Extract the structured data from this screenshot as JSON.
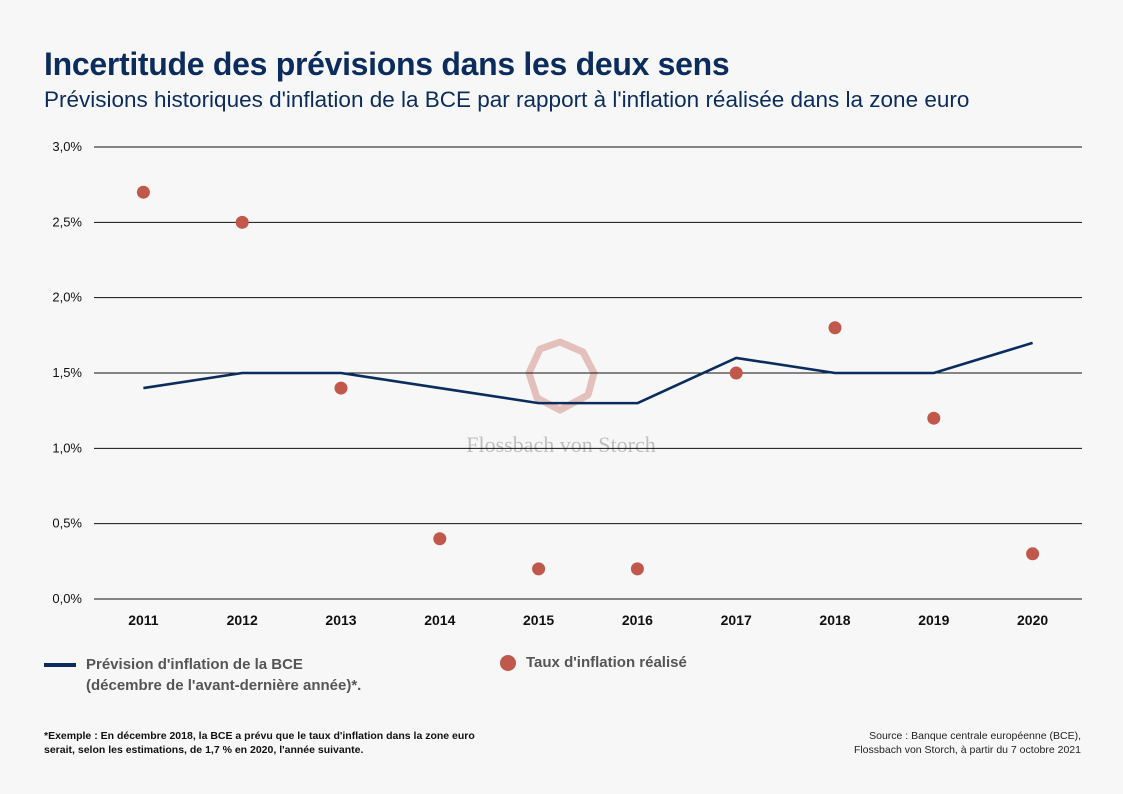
{
  "title": "Incertitude des prévisions dans les deux sens",
  "subtitle": "Prévisions historiques d'inflation de la BCE par rapport à l'inflation réalisée dans la zone euro",
  "watermark": "Flossbach von Storch",
  "legend": {
    "forecast_line1": "Prévision d'inflation de la BCE",
    "forecast_line2": "(décembre de l'avant-dernière année)*.",
    "actual": "Taux d'inflation réalisé"
  },
  "footnote": "*Exemple : En décembre 2018, la BCE a prévu que le taux d'inflation dans la zone euro serait, selon les estimations, de 1,7 % en 2020, l'année suivante.",
  "source_line1": "Source : Banque centrale européenne (BCE),",
  "source_line2": "Flossbach von Storch, à partir du 7 octobre 2021",
  "colors": {
    "forecast": "#0b2c5c",
    "actual": "#c0584c",
    "watermark": "#c0584c"
  },
  "chart_data": {
    "type": "line",
    "categories": [
      "2011",
      "2012",
      "2013",
      "2014",
      "2015",
      "2016",
      "2017",
      "2018",
      "2019",
      "2020"
    ],
    "series": [
      {
        "name": "Prévision d'inflation de la BCE",
        "type": "line",
        "values": [
          1.4,
          1.5,
          1.5,
          1.4,
          1.3,
          1.3,
          1.6,
          1.5,
          1.5,
          1.7
        ]
      },
      {
        "name": "Taux d'inflation réalisé",
        "type": "scatter",
        "values": [
          2.7,
          2.5,
          1.4,
          0.4,
          0.2,
          0.2,
          1.5,
          1.8,
          1.2,
          0.3
        ]
      }
    ],
    "y_ticks": [
      "0,0%",
      "0,5%",
      "1,0%",
      "1,5%",
      "2,0%",
      "2,5%",
      "3,0%"
    ],
    "y_tick_values": [
      0,
      0.5,
      1.0,
      1.5,
      2.0,
      2.5,
      3.0
    ],
    "ylim": [
      0,
      3.0
    ],
    "grid": true
  }
}
